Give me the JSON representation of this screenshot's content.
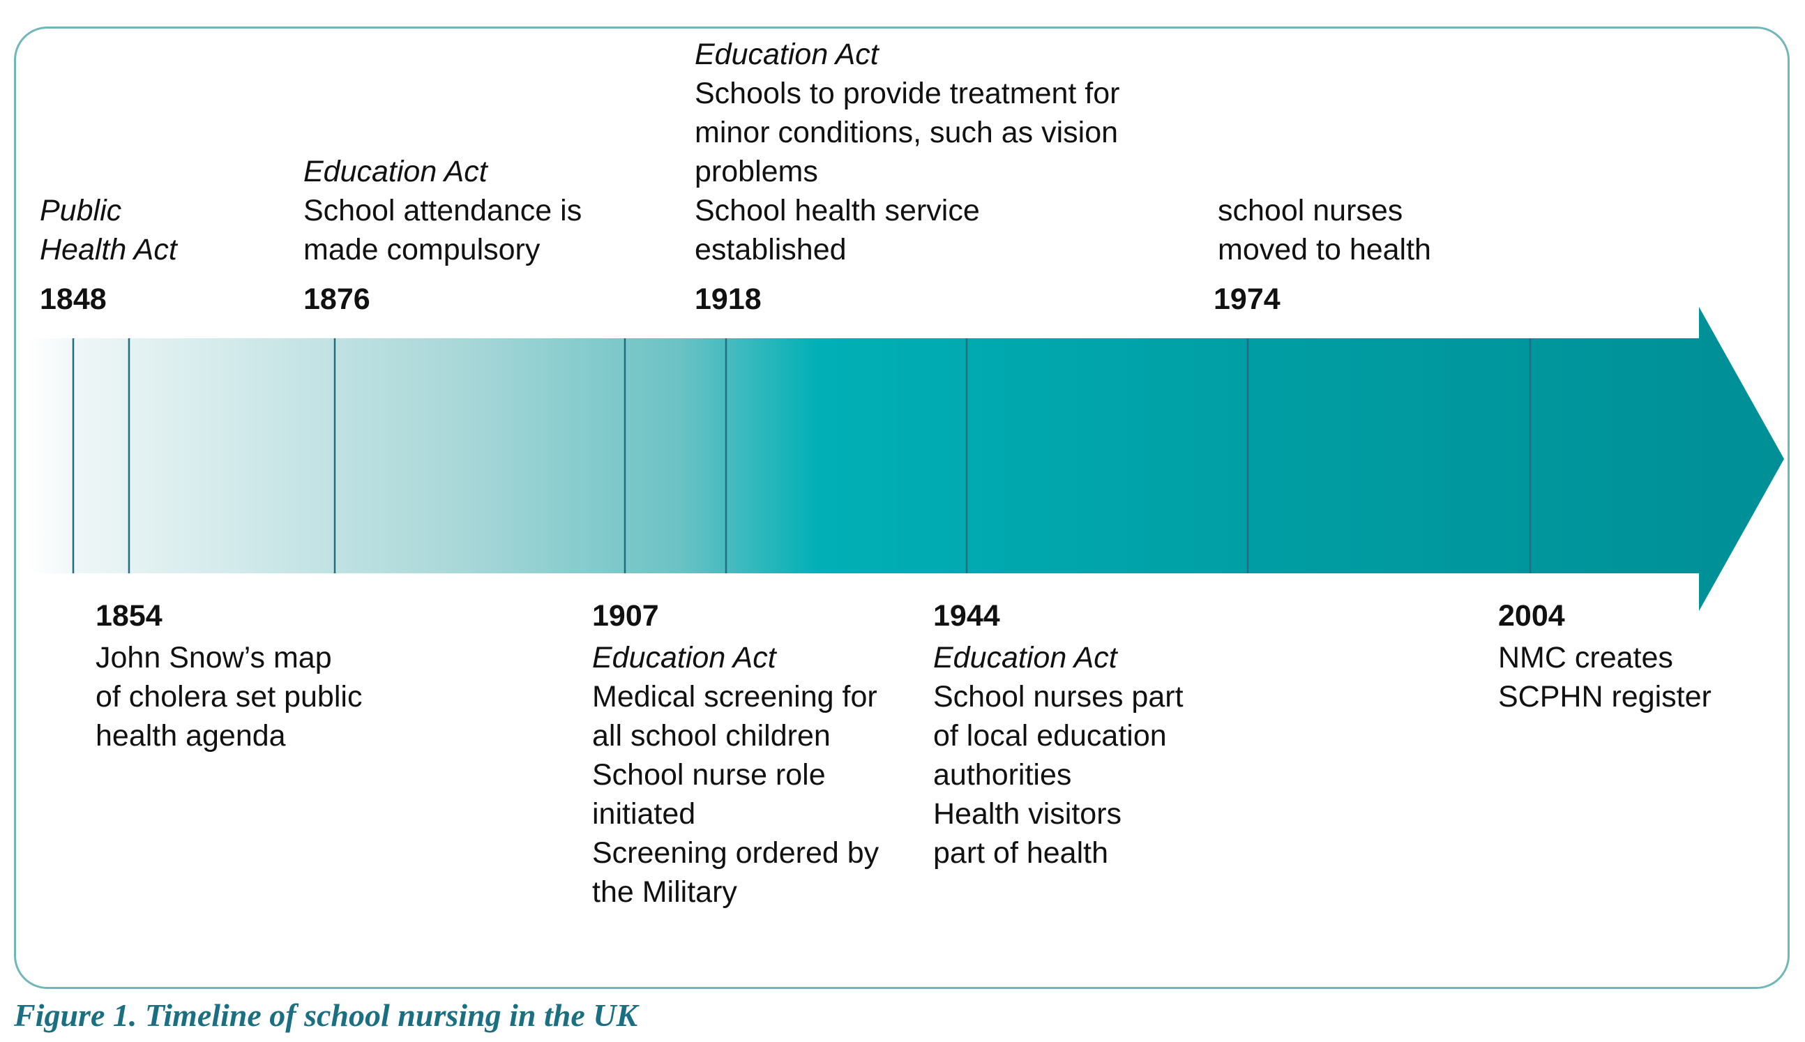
{
  "figure_caption": "Figure 1. Timeline of school nursing in the UK",
  "colors": {
    "arrow_light": "#f2f8f9",
    "arrow_mid": "#00b0b6",
    "arrow_dark": "#008f96",
    "tick_line": "#1f6f80",
    "frame_border": "#6fb7b8",
    "caption": "#1a6f82"
  },
  "events_above": [
    {
      "year": "1848",
      "act": "Public",
      "act2": "Health Act",
      "lines": []
    },
    {
      "year": "1876",
      "act": "Education Act",
      "lines": [
        "School attendance is",
        "made compulsory"
      ]
    },
    {
      "year": "1918",
      "act": "Education Act",
      "lines": [
        "Schools to provide treatment for",
        "minor conditions, such as vision",
        "problems",
        "School health service",
        "established"
      ]
    },
    {
      "year": "1974",
      "act": "",
      "lines": [
        "school nurses",
        "moved to health"
      ]
    }
  ],
  "events_below": [
    {
      "year": "1854",
      "act": "",
      "lines": [
        "John Snow’s map",
        "of cholera set public",
        "health agenda"
      ]
    },
    {
      "year": "1907",
      "act": "Education Act",
      "lines": [
        "Medical screening for",
        "all school children",
        "School nurse role",
        "initiated",
        "Screening ordered by",
        "the Military"
      ]
    },
    {
      "year": "1944",
      "act": "Education Act",
      "lines": [
        "School nurses part",
        "of local education",
        "authorities",
        "Health visitors",
        "part of health"
      ]
    },
    {
      "year": "2004",
      "act": "",
      "lines": [
        "NMC creates",
        "SCPHN register"
      ]
    }
  ]
}
